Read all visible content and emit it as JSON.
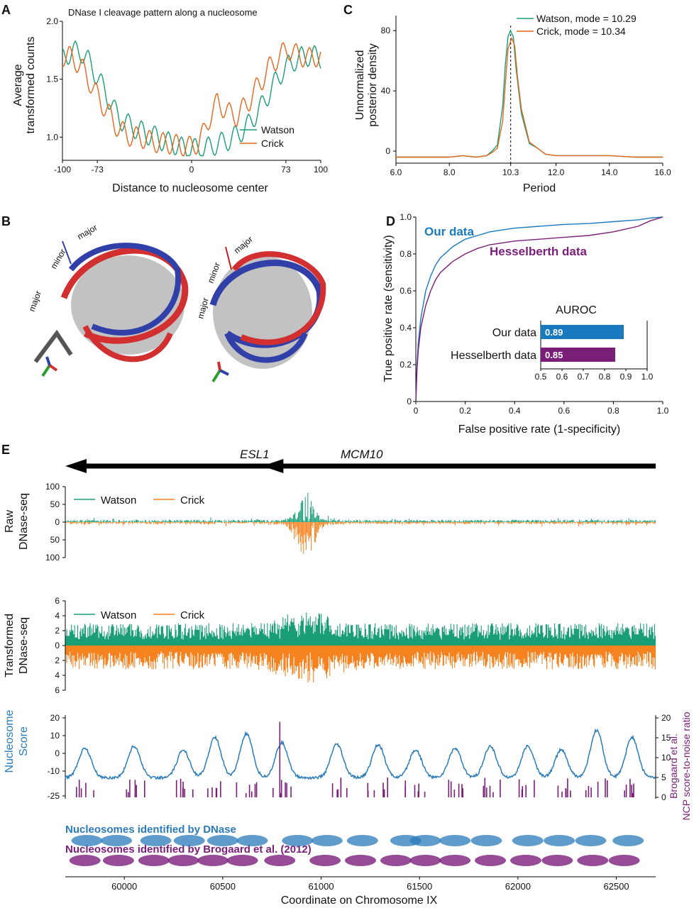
{
  "colors": {
    "watson": "#1a9e77",
    "crick": "#e4671d",
    "crick_orange": "#f5821f",
    "blue": "#2b7bb9",
    "purple": "#7b1e7a",
    "auroc_our": "#1a7abf",
    "auroc_hes": "#7b1e7a"
  },
  "panels": {
    "A": "A",
    "B": "B",
    "C": "C",
    "D": "D",
    "E": "E"
  },
  "chart_data": [
    {
      "id": "A",
      "type": "line",
      "title": "DNase I cleavage pattern along a nucleosome",
      "xlabel": "Distance to nucleosome center",
      "ylabel_lines": [
        "Average",
        "transformed counts"
      ],
      "xticks": [
        "-100",
        "-73",
        "0",
        "73",
        "100"
      ],
      "xtick_values": [
        -100,
        -73,
        0,
        73,
        100
      ],
      "yticks": [
        "1.0",
        "1.5",
        "2.0"
      ],
      "ytick_values": [
        1.0,
        1.5,
        2.0
      ],
      "xlim": [
        -100,
        100
      ],
      "ylim": [
        0.8,
        2.0
      ],
      "series": [
        {
          "name": "Watson",
          "x": [
            -100,
            -95,
            -90,
            -85,
            -80,
            -75,
            -70,
            -65,
            -60,
            -55,
            -50,
            -45,
            -40,
            -35,
            -30,
            -25,
            -20,
            -15,
            -10,
            -5,
            0,
            5,
            10,
            15,
            20,
            25,
            30,
            35,
            40,
            45,
            50,
            55,
            60,
            65,
            70,
            75,
            80,
            85,
            90,
            95,
            100
          ],
          "y": [
            1.68,
            1.72,
            1.74,
            1.73,
            1.66,
            1.56,
            1.46,
            1.35,
            1.24,
            1.15,
            1.12,
            1.08,
            1.06,
            1.02,
            1.02,
            0.98,
            0.96,
            0.95,
            0.92,
            0.9,
            0.9,
            0.9,
            0.9,
            0.92,
            0.94,
            0.96,
            0.98,
            1.02,
            1.06,
            1.12,
            1.2,
            1.28,
            1.38,
            1.48,
            1.56,
            1.62,
            1.66,
            1.69,
            1.7,
            1.7,
            1.68
          ]
        },
        {
          "name": "Crick",
          "x": [
            -100,
            -95,
            -90,
            -85,
            -80,
            -75,
            -70,
            -65,
            -60,
            -55,
            -50,
            -45,
            -40,
            -35,
            -30,
            -25,
            -20,
            -15,
            -10,
            -5,
            0,
            5,
            10,
            15,
            20,
            25,
            30,
            35,
            40,
            45,
            50,
            55,
            60,
            65,
            70,
            75,
            80,
            85,
            90,
            95,
            100
          ],
          "y": [
            1.7,
            1.7,
            1.66,
            1.6,
            1.5,
            1.4,
            1.3,
            1.22,
            1.12,
            1.06,
            1.02,
            1.0,
            1.0,
            0.98,
            0.96,
            0.95,
            0.95,
            0.94,
            0.93,
            0.92,
            0.92,
            0.95,
            1.05,
            1.2,
            1.3,
            1.25,
            1.2,
            1.18,
            1.25,
            1.32,
            1.42,
            1.5,
            1.6,
            1.66,
            1.72,
            1.76,
            1.72,
            1.7,
            1.68,
            1.7,
            1.68
          ]
        }
      ],
      "legend_position": "lower-right"
    },
    {
      "id": "C",
      "type": "line",
      "xlabel": "Period",
      "ylabel_lines": [
        "Unnormalized",
        "posterior density"
      ],
      "xticks": [
        "6.0",
        "8.0",
        "10.3",
        "12.0",
        "14.0",
        "16.0"
      ],
      "xtick_values": [
        6.0,
        8.0,
        10.3,
        12.0,
        14.0,
        16.0
      ],
      "yticks": [
        "0",
        "40",
        "80"
      ],
      "ytick_values": [
        0,
        40,
        80
      ],
      "xlim": [
        6.0,
        16.0
      ],
      "ylim": [
        -8,
        90
      ],
      "dashed_line_x": 10.3,
      "series": [
        {
          "name": "Watson, mode = 10.29",
          "x": [
            6.0,
            7.0,
            8.0,
            8.5,
            9.0,
            9.4,
            9.6,
            9.8,
            10.0,
            10.1,
            10.2,
            10.29,
            10.4,
            10.5,
            10.7,
            11.0,
            11.3,
            11.6,
            12.0,
            13.0,
            14.0,
            15.0,
            16.0
          ],
          "y": [
            -4,
            -4,
            -4,
            -3,
            -4,
            -3,
            0,
            4,
            30,
            58,
            76,
            80,
            76,
            55,
            25,
            5,
            2,
            -2,
            -3,
            -3,
            -3,
            -4,
            -4
          ]
        },
        {
          "name": "Crick, mode = 10.34",
          "x": [
            6.0,
            7.0,
            8.0,
            8.5,
            9.0,
            9.4,
            9.6,
            9.8,
            10.0,
            10.1,
            10.2,
            10.34,
            10.45,
            10.55,
            10.7,
            11.0,
            11.3,
            11.6,
            12.0,
            13.0,
            14.0,
            15.0,
            16.0
          ],
          "y": [
            -4,
            -4,
            -4,
            -3,
            -4,
            -3,
            -1,
            2,
            20,
            45,
            68,
            75,
            70,
            50,
            28,
            6,
            2,
            -2,
            -3,
            -3,
            -3,
            -4,
            -4
          ]
        }
      ],
      "legend_position": "top-right"
    },
    {
      "id": "D",
      "type": "line",
      "xlabel": "False positive rate (1-specificity)",
      "ylabel": "True positive rate (sensitivity)",
      "xticks": [
        "0",
        "0.2",
        "0.4",
        "0.6",
        "0.8",
        "1.0"
      ],
      "xtick_values": [
        0,
        0.2,
        0.4,
        0.6,
        0.8,
        1.0
      ],
      "yticks": [
        "0",
        "0.2",
        "0.4",
        "0.6",
        "0.8",
        "1.0"
      ],
      "ytick_values": [
        0,
        0.2,
        0.4,
        0.6,
        0.8,
        1.0
      ],
      "xlim": [
        0,
        1
      ],
      "ylim": [
        0,
        1
      ],
      "series": [
        {
          "name": "Our data",
          "x": [
            0,
            0.005,
            0.01,
            0.02,
            0.04,
            0.06,
            0.08,
            0.1,
            0.15,
            0.2,
            0.25,
            0.3,
            0.4,
            0.5,
            0.6,
            0.7,
            0.8,
            0.9,
            0.95,
            1.0
          ],
          "y": [
            0,
            0.2,
            0.32,
            0.45,
            0.6,
            0.68,
            0.74,
            0.78,
            0.84,
            0.88,
            0.9,
            0.92,
            0.94,
            0.95,
            0.96,
            0.965,
            0.975,
            0.985,
            0.995,
            1.0
          ]
        },
        {
          "name": "Hesselberth data",
          "x": [
            0,
            0.005,
            0.01,
            0.02,
            0.04,
            0.06,
            0.08,
            0.1,
            0.15,
            0.2,
            0.25,
            0.3,
            0.4,
            0.5,
            0.6,
            0.7,
            0.8,
            0.9,
            0.95,
            1.0
          ],
          "y": [
            0,
            0.18,
            0.28,
            0.4,
            0.52,
            0.6,
            0.66,
            0.7,
            0.76,
            0.8,
            0.83,
            0.85,
            0.87,
            0.88,
            0.89,
            0.9,
            0.92,
            0.95,
            0.98,
            1.0
          ]
        }
      ],
      "inset": {
        "type": "bar",
        "title": "AUROC",
        "categories": [
          "Our data",
          "Hesselberth data"
        ],
        "values": [
          0.89,
          0.85
        ],
        "value_labels": [
          "0.89",
          "0.85"
        ],
        "xticks": [
          "0.5",
          "0.6",
          "0.7",
          "0.8",
          "0.9",
          "1.0"
        ],
        "xtick_values": [
          0.5,
          0.6,
          0.7,
          0.8,
          0.9,
          1.0
        ],
        "xlim": [
          0.5,
          1.0
        ]
      }
    },
    {
      "id": "E",
      "type": "area",
      "xlabel": "Coordinate on Chromosome IX",
      "xticks": [
        "60000",
        "60500",
        "61000",
        "61500",
        "62000",
        "62500"
      ],
      "xtick_values": [
        60000,
        60500,
        61000,
        61500,
        62000,
        62500
      ],
      "xlim": [
        59700,
        62700
      ],
      "genes": [
        {
          "name": "ESL1",
          "start": 60750,
          "end": 59700,
          "direction": "left"
        },
        {
          "name": "MCM10",
          "start": 62700,
          "end": 60700,
          "direction": "left"
        }
      ],
      "raw": {
        "ylabel_lines": [
          "Raw",
          "DNase-seq"
        ],
        "yticks": [
          "100",
          "50",
          "0",
          "50",
          "100"
        ],
        "ytick_values": [
          100,
          50,
          0,
          -50,
          -100
        ],
        "series_names": [
          "Watson",
          "Crick"
        ],
        "peak_watson": 75,
        "peak_crick": 120
      },
      "transformed": {
        "ylabel_lines": [
          "Transformed",
          "DNase-seq"
        ],
        "yticks": [
          "6",
          "4",
          "2",
          "0",
          "2",
          "4",
          "6"
        ],
        "ytick_values": [
          6,
          4,
          2,
          0,
          -2,
          -4,
          -6
        ],
        "series_names": [
          "Watson",
          "Crick"
        ]
      },
      "score": {
        "ylabel_lines": [
          "Nucleosome",
          "Score"
        ],
        "yticks": [
          "20",
          "10",
          "0",
          "-10",
          "-25"
        ],
        "ytick_values": [
          20,
          10,
          0,
          -10,
          -25
        ],
        "right_ylabel_lines": [
          "Brogaard et al.",
          "NCP score-to-noise ratio"
        ],
        "right_yticks": [
          "20",
          "15",
          "10",
          "5",
          "0"
        ],
        "right_ytick_values": [
          20,
          15,
          10,
          5,
          0
        ],
        "score_peaks_x": [
          59800,
          60050,
          60300,
          60460,
          60620,
          60800,
          61080,
          61290,
          61480,
          61680,
          61860,
          62050,
          62220,
          62400,
          62580
        ],
        "score_peaks_y": [
          3,
          4,
          2,
          9,
          11,
          6,
          5,
          5,
          2,
          3,
          4,
          4,
          2,
          13,
          9
        ]
      },
      "nucleosomes": {
        "dnase_label": "Nucleosomes identified by DNase",
        "brogaard_label": "Nucleosomes identified by Brogaard et al. (2012)",
        "dnase_centers": [
          59810,
          59960,
          60160,
          60330,
          60500,
          60650,
          60880,
          61030,
          61210,
          61430,
          61530,
          61680,
          61840,
          62050,
          62210,
          62370,
          62560
        ],
        "brogaard_centers": [
          59800,
          59970,
          60150,
          60300,
          60450,
          60600,
          60790,
          61020,
          61200,
          61380,
          61530,
          61680,
          61860,
          62040,
          62200,
          62380,
          62540
        ]
      }
    }
  ]
}
